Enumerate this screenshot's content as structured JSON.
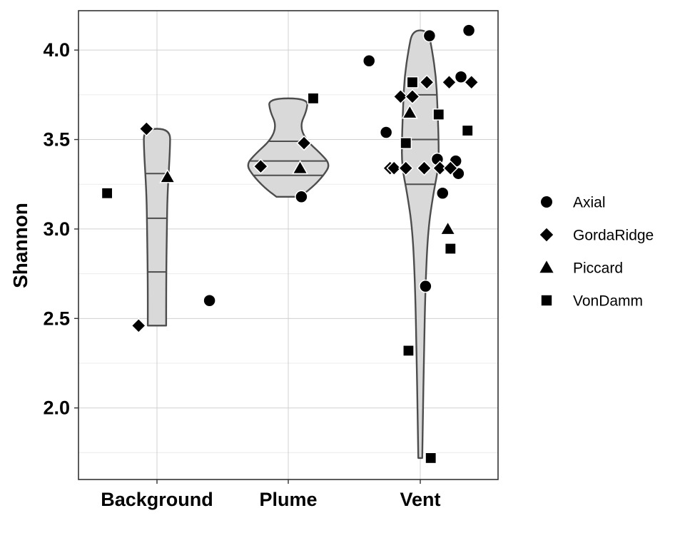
{
  "chart_data": {
    "type": "violin-scatter",
    "xlabel": "",
    "ylabel": "Shannon",
    "categories": [
      "Background",
      "Plume",
      "Vent"
    ],
    "yticks": [
      2.0,
      2.5,
      3.0,
      3.5,
      4.0
    ],
    "ytick_labels": [
      "2.0",
      "2.5",
      "3.0",
      "3.5",
      "4.0"
    ],
    "ylim": [
      1.6,
      4.22
    ],
    "grid": true,
    "legend_position": "right",
    "colors": {
      "violin_fill": "#d9d9d9",
      "violin_stroke": "#4d4d4d",
      "points": "#000000",
      "panel_border": "#333333",
      "grid_major": "#d0d0d0",
      "grid_minor": "#ebebeb"
    },
    "legend": [
      {
        "label": "Axial",
        "shape": "circle"
      },
      {
        "label": "GordaRidge",
        "shape": "diamond"
      },
      {
        "label": "Piccard",
        "shape": "triangle"
      },
      {
        "label": "VonDamm",
        "shape": "square"
      }
    ],
    "violins": [
      {
        "category": "Background",
        "quantiles": [
          2.76,
          3.06,
          3.31
        ],
        "profile": [
          [
            2.46,
            0.07
          ],
          [
            2.7,
            0.07
          ],
          [
            3.0,
            0.075
          ],
          [
            3.2,
            0.08
          ],
          [
            3.45,
            0.1
          ],
          [
            3.56,
            0.1
          ]
        ]
      },
      {
        "category": "Plume",
        "quantiles": [
          3.3,
          3.38,
          3.49
        ],
        "profile": [
          [
            3.18,
            0.09
          ],
          [
            3.23,
            0.18
          ],
          [
            3.3,
            0.27
          ],
          [
            3.36,
            0.32
          ],
          [
            3.42,
            0.25
          ],
          [
            3.5,
            0.13
          ],
          [
            3.58,
            0.09
          ],
          [
            3.66,
            0.14
          ],
          [
            3.73,
            0.15
          ]
        ]
      },
      {
        "category": "Vent",
        "quantiles": [
          3.25,
          3.5,
          3.75
        ],
        "profile": [
          [
            1.72,
            0.015
          ],
          [
            1.95,
            0.02
          ],
          [
            2.3,
            0.028
          ],
          [
            2.7,
            0.04
          ],
          [
            3.0,
            0.06
          ],
          [
            3.2,
            0.1
          ],
          [
            3.35,
            0.14
          ],
          [
            3.5,
            0.14
          ],
          [
            3.7,
            0.13
          ],
          [
            3.85,
            0.12
          ],
          [
            4.0,
            0.09
          ],
          [
            4.11,
            0.06
          ]
        ]
      }
    ],
    "points": [
      {
        "category": "Background",
        "site": "VonDamm",
        "x_offset": -0.38,
        "y": 3.2
      },
      {
        "category": "Background",
        "site": "GordaRidge",
        "x_offset": -0.08,
        "y": 3.56
      },
      {
        "category": "Background",
        "site": "GordaRidge",
        "x_offset": -0.14,
        "y": 2.46
      },
      {
        "category": "Background",
        "site": "Piccard",
        "x_offset": 0.08,
        "y": 3.29
      },
      {
        "category": "Background",
        "site": "Axial",
        "x_offset": 0.4,
        "y": 2.6
      },
      {
        "category": "Plume",
        "site": "VonDamm",
        "x_offset": 0.19,
        "y": 3.73
      },
      {
        "category": "Plume",
        "site": "GordaRidge",
        "x_offset": 0.12,
        "y": 3.48
      },
      {
        "category": "Plume",
        "site": "GordaRidge",
        "x_offset": -0.21,
        "y": 3.35
      },
      {
        "category": "Plume",
        "site": "Piccard",
        "x_offset": 0.09,
        "y": 3.34
      },
      {
        "category": "Plume",
        "site": "Axial",
        "x_offset": 0.1,
        "y": 3.18
      },
      {
        "category": "Vent",
        "site": "Axial",
        "x_offset": 0.07,
        "y": 4.08
      },
      {
        "category": "Vent",
        "site": "Axial",
        "x_offset": 0.37,
        "y": 4.11
      },
      {
        "category": "Vent",
        "site": "Axial",
        "x_offset": -0.39,
        "y": 3.94
      },
      {
        "category": "Vent",
        "site": "Axial",
        "x_offset": 0.31,
        "y": 3.85
      },
      {
        "category": "Vent",
        "site": "Axial",
        "x_offset": -0.26,
        "y": 3.54
      },
      {
        "category": "Vent",
        "site": "Axial",
        "x_offset": 0.13,
        "y": 3.39
      },
      {
        "category": "Vent",
        "site": "Axial",
        "x_offset": 0.27,
        "y": 3.38
      },
      {
        "category": "Vent",
        "site": "Axial",
        "x_offset": 0.29,
        "y": 3.31
      },
      {
        "category": "Vent",
        "site": "Axial",
        "x_offset": 0.17,
        "y": 3.2
      },
      {
        "category": "Vent",
        "site": "Axial",
        "x_offset": 0.04,
        "y": 2.68
      },
      {
        "category": "Vent",
        "site": "GordaRidge",
        "x_offset": 0.05,
        "y": 3.82
      },
      {
        "category": "Vent",
        "site": "GordaRidge",
        "x_offset": 0.22,
        "y": 3.82
      },
      {
        "category": "Vent",
        "site": "GordaRidge",
        "x_offset": 0.39,
        "y": 3.82
      },
      {
        "category": "Vent",
        "site": "GordaRidge",
        "x_offset": -0.15,
        "y": 3.74
      },
      {
        "category": "Vent",
        "site": "GordaRidge",
        "x_offset": -0.06,
        "y": 3.74
      },
      {
        "category": "Vent",
        "site": "GordaRidge",
        "x_offset": -0.23,
        "y": 3.34
      },
      {
        "category": "Vent",
        "site": "GordaRidge",
        "x_offset": -0.2,
        "y": 3.34
      },
      {
        "category": "Vent",
        "site": "GordaRidge",
        "x_offset": -0.11,
        "y": 3.34
      },
      {
        "category": "Vent",
        "site": "GordaRidge",
        "x_offset": 0.03,
        "y": 3.34
      },
      {
        "category": "Vent",
        "site": "GordaRidge",
        "x_offset": 0.15,
        "y": 3.34
      },
      {
        "category": "Vent",
        "site": "GordaRidge",
        "x_offset": 0.23,
        "y": 3.34
      },
      {
        "category": "Vent",
        "site": "Piccard",
        "x_offset": -0.08,
        "y": 3.65
      },
      {
        "category": "Vent",
        "site": "Piccard",
        "x_offset": 0.21,
        "y": 3.0
      },
      {
        "category": "Vent",
        "site": "VonDamm",
        "x_offset": -0.06,
        "y": 3.82
      },
      {
        "category": "Vent",
        "site": "VonDamm",
        "x_offset": 0.14,
        "y": 3.64
      },
      {
        "category": "Vent",
        "site": "VonDamm",
        "x_offset": 0.36,
        "y": 3.55
      },
      {
        "category": "Vent",
        "site": "VonDamm",
        "x_offset": -0.11,
        "y": 3.48
      },
      {
        "category": "Vent",
        "site": "VonDamm",
        "x_offset": 0.23,
        "y": 2.89
      },
      {
        "category": "Vent",
        "site": "VonDamm",
        "x_offset": -0.09,
        "y": 2.32
      },
      {
        "category": "Vent",
        "site": "VonDamm",
        "x_offset": 0.08,
        "y": 1.72
      }
    ]
  }
}
